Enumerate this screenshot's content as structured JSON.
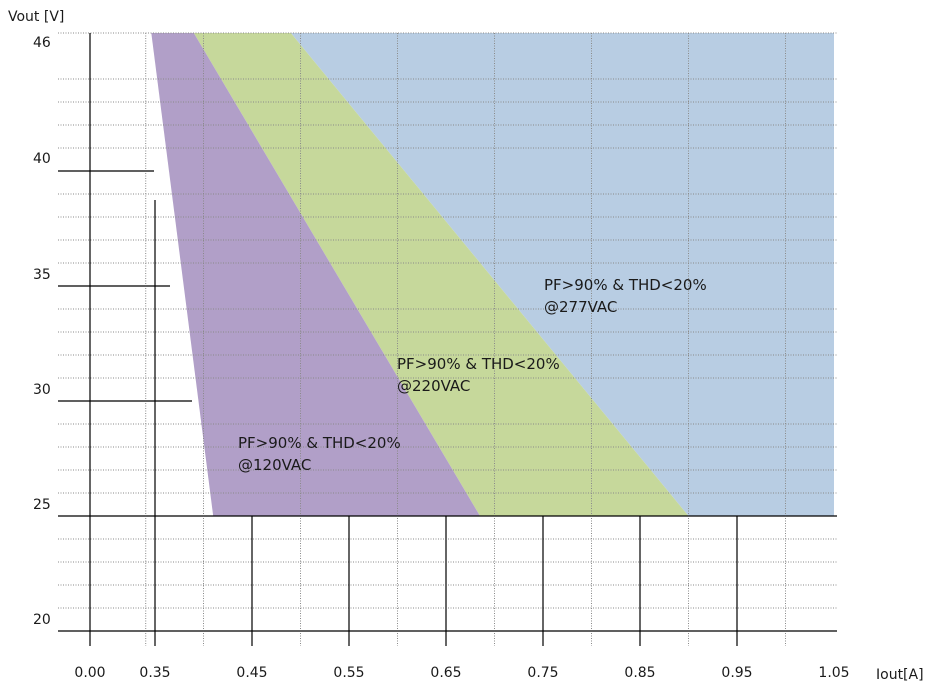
{
  "chart_data": {
    "type": "area",
    "title": "",
    "xlabel": "Iout[A]",
    "ylabel": "Vout [V]",
    "x_tick_labels": [
      "0.00",
      "0.35",
      "0.45",
      "0.55",
      "0.65",
      "0.75",
      "0.85",
      "0.95",
      "1.05"
    ],
    "y_tick_labels": [
      "20",
      "25",
      "30",
      "35",
      "40",
      "46"
    ],
    "xlim": [
      0.0,
      1.05
    ],
    "ylim": [
      20,
      46
    ],
    "grid": true,
    "legend": "none",
    "regions": [
      {
        "label_line1": "PF>90% & THD<20%",
        "label_line2": "@277VAC",
        "color": "#b8cde3",
        "polygon": [
          [
            0.49,
            46
          ],
          [
            1.05,
            46
          ],
          [
            1.05,
            25
          ],
          [
            0.9,
            25
          ]
        ]
      },
      {
        "label_line1": "PF>90% & THD<20%",
        "label_line2": "@220VAC",
        "color": "#c6d89b",
        "polygon": [
          [
            0.39,
            46
          ],
          [
            0.49,
            46
          ],
          [
            0.9,
            25
          ],
          [
            0.685,
            25
          ]
        ]
      },
      {
        "label_line1": "PF>90% & THD<20%",
        "label_line2": "@120VAC",
        "color": "#b19fc8",
        "polygon": [
          [
            0.33,
            46
          ],
          [
            0.39,
            46
          ],
          [
            0.685,
            25
          ],
          [
            0.41,
            25
          ]
        ]
      }
    ]
  }
}
